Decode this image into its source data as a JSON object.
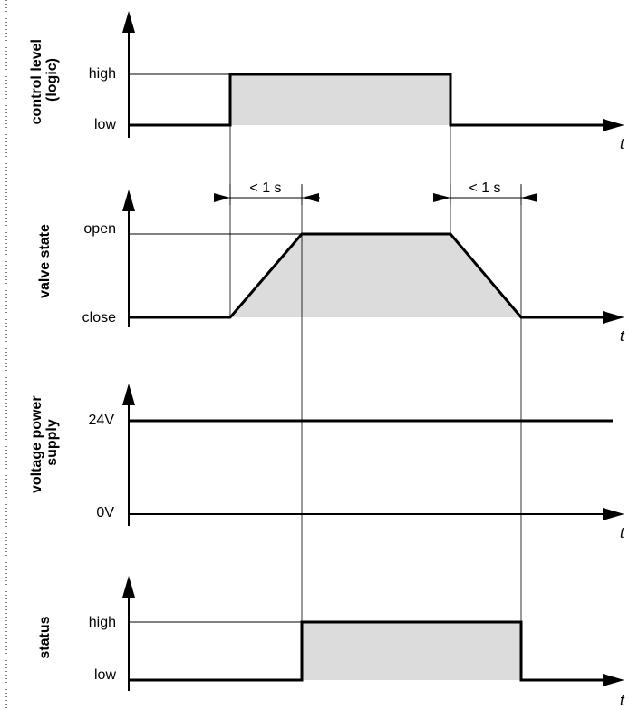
{
  "panels": [
    {
      "id": "control",
      "ylabel_lines": [
        "control level",
        "(logic)"
      ],
      "high_label": "high",
      "low_label": "low",
      "time_label": "t"
    },
    {
      "id": "valve",
      "ylabel_lines": [
        "valve state"
      ],
      "high_label": "open",
      "low_label": "close",
      "time_label": "t"
    },
    {
      "id": "voltage",
      "ylabel_lines": [
        "voltage power",
        "supply"
      ],
      "high_label": "24V",
      "low_label": "0V",
      "time_label": "t"
    },
    {
      "id": "status",
      "ylabel_lines": [
        "status"
      ],
      "high_label": "high",
      "low_label": "low",
      "time_label": "t"
    }
  ],
  "timings": {
    "open_delay_label": "< 1 s",
    "close_delay_label": "< 1 s"
  }
}
